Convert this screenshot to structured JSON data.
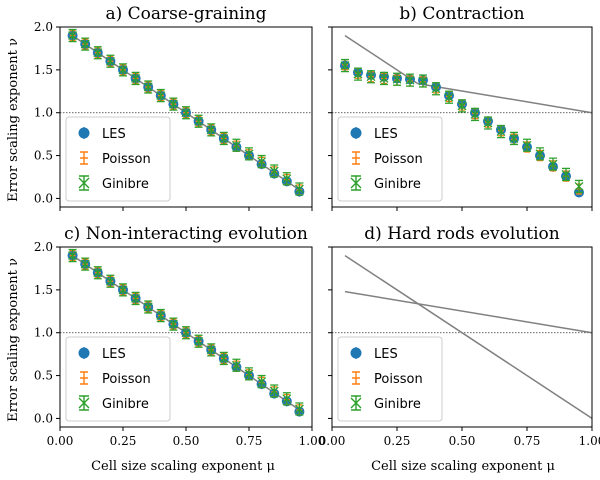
{
  "chart_data": {
    "type": "scatter",
    "figure": {
      "xlabel": "Cell size scaling exponent μ",
      "ylabel": "Error scaling exponent ν",
      "xlim": [
        0.0,
        1.0
      ],
      "ylim": [
        -0.1,
        2.0
      ],
      "xticks": [
        0.0,
        0.25,
        0.5,
        0.75,
        1.0
      ],
      "xtick_labels": [
        "0.00",
        "0.25",
        "0.50",
        "0.75",
        "1.00"
      ],
      "yticks": [
        0.0,
        0.5,
        1.0,
        1.5,
        2.0
      ],
      "ytick_labels": [
        "0.0",
        "0.5",
        "1.0",
        "1.5",
        "2.0"
      ],
      "colors": {
        "LES": "#1f77b4",
        "Poisson": "#ff7f0e",
        "Ginibre": "#2ca02c",
        "reference": "#808080",
        "hline": "#333333"
      },
      "legend_placement": "lower-left",
      "legend": [
        "LES",
        "Poisson",
        "Ginibre"
      ],
      "hline": 1.0
    },
    "panels": [
      {
        "title": "a) Coarse-graining",
        "reference_lines": [
          {
            "x": [
              0.05,
              0.95
            ],
            "y": [
              1.9,
              0.1
            ]
          }
        ],
        "series": [
          {
            "name": "LES",
            "marker": "circle",
            "x": [
              0.05,
              0.1,
              0.15,
              0.2,
              0.25,
              0.3,
              0.35,
              0.4,
              0.45,
              0.5,
              0.55,
              0.6,
              0.65,
              0.7,
              0.75,
              0.8,
              0.85,
              0.9,
              0.95
            ],
            "y": [
              1.9,
              1.8,
              1.7,
              1.6,
              1.5,
              1.4,
              1.3,
              1.2,
              1.1,
              1.0,
              0.9,
              0.8,
              0.7,
              0.6,
              0.5,
              0.4,
              0.29,
              0.2,
              0.08
            ]
          },
          {
            "name": "Poisson",
            "marker": "errorbar",
            "x": [
              0.05,
              0.1,
              0.15,
              0.2,
              0.25,
              0.3,
              0.35,
              0.4,
              0.45,
              0.5,
              0.55,
              0.6,
              0.65,
              0.7,
              0.75,
              0.8,
              0.85,
              0.9,
              0.95
            ],
            "y": [
              1.9,
              1.8,
              1.7,
              1.6,
              1.5,
              1.4,
              1.3,
              1.2,
              1.1,
              1.0,
              0.9,
              0.8,
              0.7,
              0.61,
              0.51,
              0.42,
              0.31,
              0.22,
              0.1
            ]
          },
          {
            "name": "Ginibre",
            "marker": "x",
            "x": [
              0.05,
              0.1,
              0.15,
              0.2,
              0.25,
              0.3,
              0.35,
              0.4,
              0.45,
              0.5,
              0.55,
              0.6,
              0.65,
              0.7,
              0.75,
              0.8,
              0.85,
              0.9,
              0.95
            ],
            "y": [
              1.9,
              1.8,
              1.7,
              1.6,
              1.5,
              1.4,
              1.3,
              1.2,
              1.1,
              1.0,
              0.9,
              0.8,
              0.7,
              0.62,
              0.52,
              0.43,
              0.32,
              0.23,
              0.11
            ]
          }
        ]
      },
      {
        "title": "b) Contraction",
        "reference_lines": [
          {
            "x": [
              0.05,
              0.33
            ],
            "y": [
              1.9,
              1.34
            ]
          },
          {
            "x": [
              0.33,
              1.0
            ],
            "y": [
              1.34,
              1.0
            ]
          }
        ],
        "series": [
          {
            "name": "LES",
            "marker": "circle",
            "x": [
              0.05,
              0.1,
              0.15,
              0.2,
              0.25,
              0.3,
              0.35,
              0.4,
              0.45,
              0.5,
              0.55,
              0.6,
              0.65,
              0.7,
              0.75,
              0.8,
              0.85,
              0.9,
              0.95
            ],
            "y": [
              1.55,
              1.47,
              1.44,
              1.42,
              1.4,
              1.39,
              1.38,
              1.3,
              1.2,
              1.1,
              1.0,
              0.9,
              0.8,
              0.7,
              0.6,
              0.5,
              0.37,
              0.26,
              0.07
            ]
          },
          {
            "name": "Poisson",
            "marker": "errorbar",
            "x": [
              0.05,
              0.1,
              0.15,
              0.2,
              0.25,
              0.3,
              0.35,
              0.4,
              0.45,
              0.5,
              0.55,
              0.6,
              0.65,
              0.7,
              0.75,
              0.8,
              0.85,
              0.9,
              0.95
            ],
            "y": [
              1.56,
              1.46,
              1.42,
              1.4,
              1.38,
              1.37,
              1.36,
              1.29,
              1.19,
              1.09,
              0.99,
              0.89,
              0.79,
              0.69,
              0.6,
              0.5,
              0.38,
              0.26,
              0.11
            ]
          },
          {
            "name": "Ginibre",
            "marker": "x",
            "x": [
              0.05,
              0.1,
              0.15,
              0.2,
              0.25,
              0.3,
              0.35,
              0.4,
              0.45,
              0.5,
              0.55,
              0.6,
              0.65,
              0.7,
              0.75,
              0.8,
              0.85,
              0.9,
              0.95
            ],
            "y": [
              1.55,
              1.45,
              1.42,
              1.4,
              1.39,
              1.38,
              1.37,
              1.28,
              1.18,
              1.08,
              0.98,
              0.88,
              0.78,
              0.7,
              0.62,
              0.52,
              0.4,
              0.28,
              0.14
            ]
          }
        ]
      },
      {
        "title": "c) Non-interacting evolution",
        "reference_lines": [
          {
            "x": [
              0.05,
              0.95
            ],
            "y": [
              1.9,
              0.1
            ]
          }
        ],
        "series": [
          {
            "name": "LES",
            "marker": "circle",
            "x": [
              0.05,
              0.1,
              0.15,
              0.2,
              0.25,
              0.3,
              0.35,
              0.4,
              0.45,
              0.5,
              0.55,
              0.6,
              0.65,
              0.7,
              0.75,
              0.8,
              0.85,
              0.9,
              0.95
            ],
            "y": [
              1.9,
              1.8,
              1.7,
              1.6,
              1.5,
              1.4,
              1.3,
              1.2,
              1.1,
              1.0,
              0.9,
              0.8,
              0.7,
              0.6,
              0.5,
              0.4,
              0.29,
              0.2,
              0.08
            ]
          },
          {
            "name": "Poisson",
            "marker": "errorbar",
            "x": [
              0.05,
              0.1,
              0.15,
              0.2,
              0.25,
              0.3,
              0.35,
              0.4,
              0.45,
              0.5,
              0.55,
              0.6,
              0.65,
              0.7,
              0.75,
              0.8,
              0.85,
              0.9,
              0.95
            ],
            "y": [
              1.9,
              1.8,
              1.7,
              1.6,
              1.5,
              1.4,
              1.3,
              1.2,
              1.1,
              1.0,
              0.9,
              0.8,
              0.7,
              0.61,
              0.51,
              0.42,
              0.31,
              0.22,
              0.1
            ]
          },
          {
            "name": "Ginibre",
            "marker": "x",
            "x": [
              0.05,
              0.1,
              0.15,
              0.2,
              0.25,
              0.3,
              0.35,
              0.4,
              0.45,
              0.5,
              0.55,
              0.6,
              0.65,
              0.7,
              0.75,
              0.8,
              0.85,
              0.9,
              0.95
            ],
            "y": [
              1.9,
              1.8,
              1.7,
              1.6,
              1.5,
              1.4,
              1.3,
              1.2,
              1.1,
              1.0,
              0.9,
              0.8,
              0.7,
              0.62,
              0.52,
              0.43,
              0.32,
              0.23,
              0.11
            ]
          }
        ]
      },
      {
        "title": "d) Hard rods evolution",
        "reference_lines": [
          {
            "x": [
              0.05,
              1.0
            ],
            "y": [
              1.9,
              0.0
            ]
          },
          {
            "x": [
              0.05,
              1.0
            ],
            "y": [
              1.48,
              1.0
            ]
          }
        ],
        "series": [
          {
            "name": "LES",
            "marker": "circle",
            "x": [],
            "y": []
          },
          {
            "name": "Poisson",
            "marker": "errorbar",
            "x": [],
            "y": []
          },
          {
            "name": "Ginibre",
            "marker": "x",
            "x": [],
            "y": []
          }
        ]
      }
    ]
  }
}
